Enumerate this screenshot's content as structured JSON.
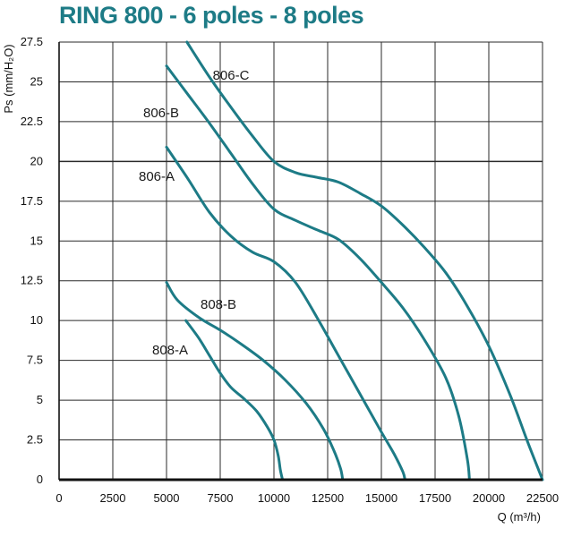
{
  "chart_data": {
    "type": "line",
    "title": "RING 800 - 6 poles -  8 poles",
    "xlabel": "Q (m³/h)",
    "ylabel": "Ps (mm/H₂O)",
    "xlim": [
      0,
      22500
    ],
    "ylim": [
      0,
      27.5
    ],
    "xticks": [
      "0",
      "2500",
      "5000",
      "7500",
      "10000",
      "12500",
      "15000",
      "17500",
      "20000",
      "22500"
    ],
    "yticks": [
      "0",
      "2.5",
      "5",
      "7.5",
      "10",
      "12.5",
      "15",
      "17.5",
      "20",
      "22.5",
      "25",
      "27.5"
    ],
    "grid": true,
    "line_color": "#1d7b86",
    "series": [
      {
        "name": "806-C",
        "x": [
          5950,
          7000,
          8000,
          9000,
          10000,
          11000,
          12000,
          13000,
          14000,
          15000,
          16000,
          17000,
          18000,
          19000,
          20000,
          21000,
          21800,
          22500
        ],
        "y": [
          27.5,
          25.3,
          23.4,
          21.6,
          20.0,
          19.3,
          19.0,
          18.7,
          18.0,
          17.2,
          16.0,
          14.6,
          13.0,
          10.9,
          8.4,
          5.3,
          2.4,
          0
        ]
      },
      {
        "name": "806-B",
        "x": [
          5000,
          6000,
          7000,
          8000,
          9000,
          10000,
          11000,
          12000,
          13000,
          14000,
          15000,
          16000,
          17000,
          18000,
          18600,
          19000,
          19100
        ],
        "y": [
          26.0,
          24.2,
          22.4,
          20.5,
          18.6,
          17.0,
          16.3,
          15.7,
          15.1,
          13.9,
          12.4,
          10.8,
          8.8,
          6.4,
          4.0,
          1.3,
          0
        ]
      },
      {
        "name": "806-A",
        "x": [
          5000,
          6000,
          7000,
          8000,
          9000,
          10000,
          11000,
          12000,
          13000,
          14000,
          15000,
          15600,
          16000,
          16100
        ],
        "y": [
          20.9,
          18.9,
          16.8,
          15.3,
          14.3,
          13.7,
          12.4,
          10.2,
          7.8,
          5.4,
          3.0,
          1.6,
          0.5,
          0
        ]
      },
      {
        "name": "808-B",
        "x": [
          5000,
          5500,
          6500,
          7500,
          8500,
          9500,
          10500,
          11500,
          12300,
          12800,
          13100,
          13200
        ],
        "y": [
          12.4,
          11.3,
          10.2,
          9.4,
          8.5,
          7.5,
          6.3,
          4.8,
          3.2,
          1.8,
          0.7,
          0
        ]
      },
      {
        "name": "808-A",
        "x": [
          5900,
          6500,
          7000,
          7500,
          8000,
          8600,
          9200,
          9700,
          10000,
          10200,
          10300,
          10400
        ],
        "y": [
          10.0,
          8.9,
          7.8,
          6.7,
          5.8,
          5.1,
          4.3,
          3.3,
          2.5,
          1.5,
          0.6,
          0
        ]
      }
    ],
    "annotations": [
      "806-C",
      "806-B",
      "806-A",
      "808-B",
      "808-A"
    ]
  }
}
